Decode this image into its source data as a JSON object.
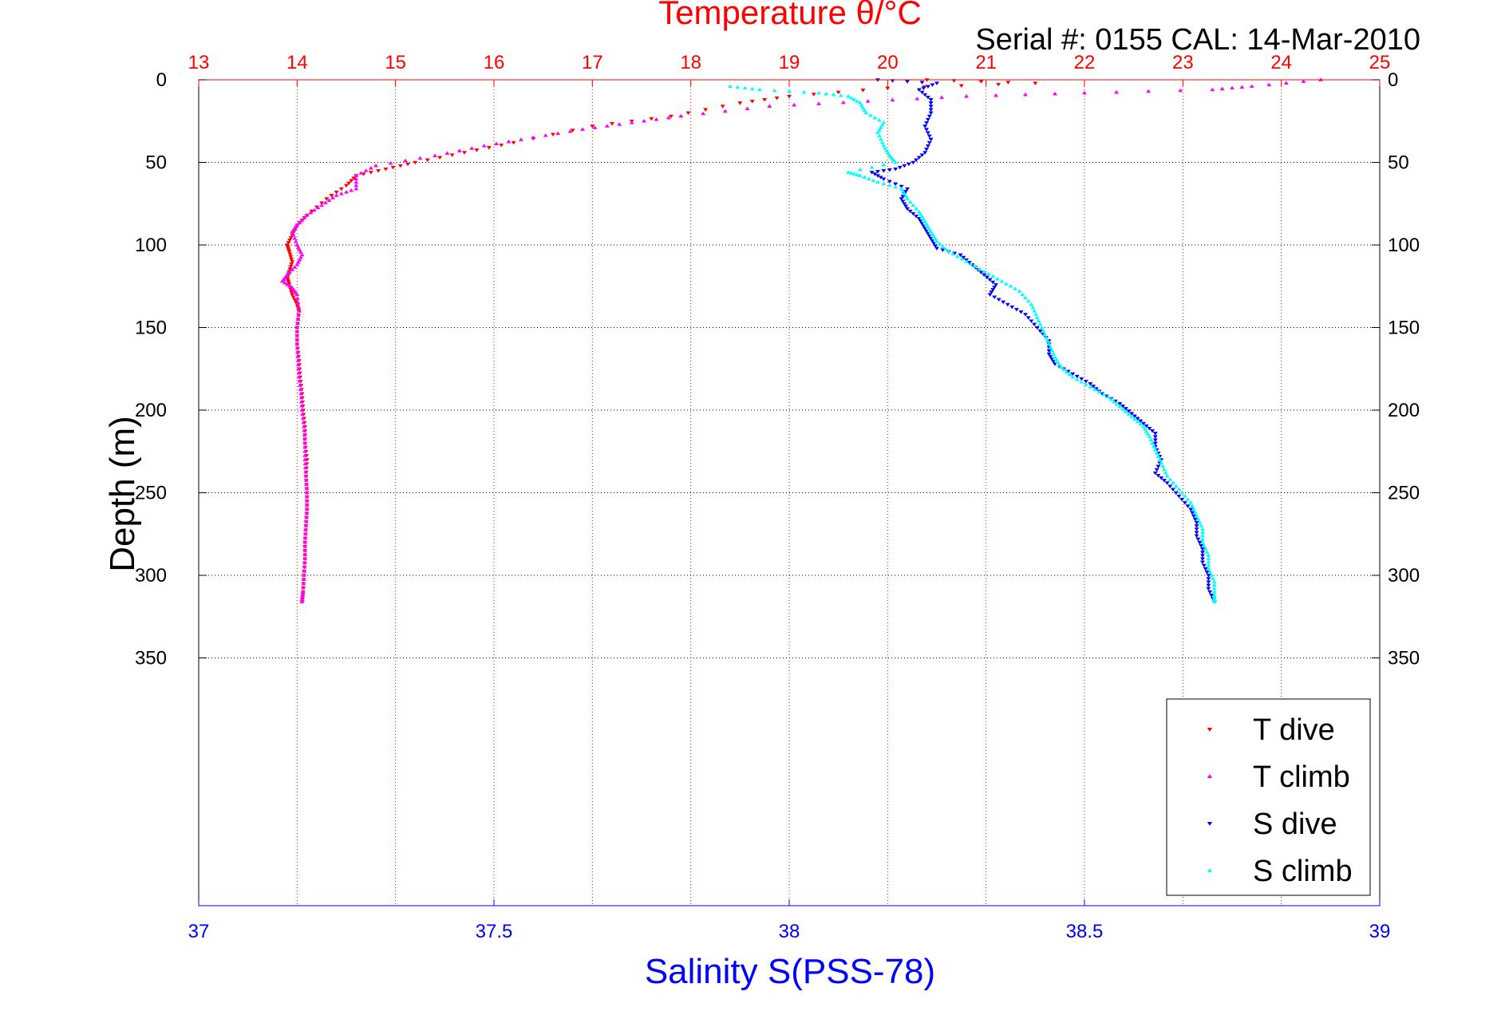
{
  "chart_data": {
    "type": "scatter",
    "title": "Temperature θ/°C",
    "annotation": "Serial #: 0155  CAL: 14-Mar-2010",
    "xlabel_bottom": "Salinity S(PSS-78)",
    "ylabel": "Depth (m)",
    "temperature_axis": {
      "position": "top",
      "range": [
        13,
        25
      ],
      "ticks": [
        "13",
        "14",
        "15",
        "16",
        "17",
        "18",
        "19",
        "20",
        "21",
        "22",
        "23",
        "24",
        "25"
      ],
      "color": "#ff0000",
      "grid": true
    },
    "salinity_axis": {
      "position": "bottom",
      "range": [
        37,
        39
      ],
      "ticks": [
        "37",
        "37.5",
        "38",
        "38.5",
        "39"
      ],
      "color": "#0000ff"
    },
    "depth_axis": {
      "range": [
        0,
        500
      ],
      "reversed": true,
      "ticks": [
        "0",
        "50",
        "100",
        "150",
        "200",
        "250",
        "300",
        "350"
      ],
      "grid": true
    },
    "legend": {
      "placement": "bottom-right",
      "entries": [
        {
          "label": "T dive",
          "color": "#ff0000",
          "marker": "triangle-down"
        },
        {
          "label": "T climb",
          "color": "#ff00ff",
          "marker": "triangle-up"
        },
        {
          "label": "S dive",
          "color": "#0000ff",
          "marker": "triangle-down"
        },
        {
          "label": "S climb",
          "color": "#00ffff",
          "marker": "triangle-up"
        }
      ]
    },
    "series": [
      {
        "name": "T dive",
        "axis": "temperature",
        "color": "#ff0000",
        "marker": "triangle-down",
        "points": [
          [
            20.4,
            0
          ],
          [
            21.5,
            2
          ],
          [
            20.0,
            5
          ],
          [
            19.0,
            10
          ],
          [
            18.5,
            14
          ],
          [
            17.8,
            22
          ],
          [
            17.0,
            28
          ],
          [
            16.2,
            38
          ],
          [
            15.7,
            44
          ],
          [
            15.2,
            50
          ],
          [
            14.9,
            54
          ],
          [
            14.6,
            58
          ],
          [
            14.5,
            64
          ],
          [
            14.3,
            72
          ],
          [
            14.1,
            82
          ],
          [
            14.0,
            88
          ],
          [
            13.95,
            94
          ],
          [
            13.9,
            100
          ],
          [
            13.92,
            104
          ],
          [
            13.95,
            110
          ],
          [
            13.92,
            116
          ],
          [
            13.9,
            120
          ],
          [
            13.92,
            124
          ],
          [
            13.95,
            130
          ],
          [
            14.0,
            136
          ],
          [
            14.02,
            140
          ],
          [
            14.0,
            150
          ],
          [
            14.0,
            160
          ],
          [
            14.02,
            170
          ],
          [
            14.03,
            180
          ],
          [
            14.05,
            190
          ],
          [
            14.06,
            200
          ],
          [
            14.08,
            210
          ],
          [
            14.08,
            220
          ],
          [
            14.1,
            230
          ],
          [
            14.09,
            240
          ],
          [
            14.1,
            250
          ],
          [
            14.1,
            260
          ],
          [
            14.09,
            270
          ],
          [
            14.08,
            280
          ],
          [
            14.08,
            290
          ],
          [
            14.07,
            300
          ],
          [
            14.06,
            310
          ],
          [
            14.05,
            316
          ]
        ]
      },
      {
        "name": "T climb",
        "axis": "temperature",
        "color": "#ff00ff",
        "marker": "triangle-up",
        "points": [
          [
            24.4,
            0
          ],
          [
            23.7,
            4
          ],
          [
            23.3,
            6
          ],
          [
            22.0,
            8
          ],
          [
            20.8,
            10
          ],
          [
            19.8,
            13
          ],
          [
            18.8,
            16
          ],
          [
            17.9,
            22
          ],
          [
            17.4,
            26
          ],
          [
            16.9,
            30
          ],
          [
            16.4,
            35
          ],
          [
            15.9,
            40
          ],
          [
            15.4,
            46
          ],
          [
            14.8,
            52
          ],
          [
            14.6,
            58
          ],
          [
            14.6,
            66
          ],
          [
            14.4,
            70
          ],
          [
            14.25,
            76
          ],
          [
            14.1,
            82
          ],
          [
            14.0,
            88
          ],
          [
            13.95,
            92
          ],
          [
            14.0,
            100
          ],
          [
            14.05,
            106
          ],
          [
            14.0,
            112
          ],
          [
            13.9,
            118
          ],
          [
            13.85,
            122
          ],
          [
            13.95,
            126
          ],
          [
            14.0,
            130
          ],
          [
            14.02,
            140
          ],
          [
            14.0,
            150
          ],
          [
            14.0,
            160
          ],
          [
            14.01,
            170
          ],
          [
            14.02,
            180
          ],
          [
            14.04,
            190
          ],
          [
            14.05,
            200
          ],
          [
            14.07,
            210
          ],
          [
            14.08,
            220
          ],
          [
            14.08,
            230
          ],
          [
            14.09,
            240
          ],
          [
            14.1,
            250
          ],
          [
            14.1,
            260
          ],
          [
            14.09,
            270
          ],
          [
            14.08,
            280
          ],
          [
            14.08,
            290
          ],
          [
            14.07,
            300
          ],
          [
            14.06,
            310
          ],
          [
            14.05,
            316
          ]
        ]
      },
      {
        "name": "S dive",
        "axis": "salinity",
        "color": "#0000ff",
        "marker": "triangle-down",
        "points": [
          [
            38.15,
            0
          ],
          [
            38.25,
            2
          ],
          [
            38.22,
            6
          ],
          [
            38.24,
            12
          ],
          [
            38.24,
            20
          ],
          [
            38.23,
            28
          ],
          [
            38.24,
            36
          ],
          [
            38.23,
            44
          ],
          [
            38.21,
            50
          ],
          [
            38.18,
            54
          ],
          [
            38.14,
            56
          ],
          [
            38.16,
            60
          ],
          [
            38.2,
            66
          ],
          [
            38.19,
            72
          ],
          [
            38.2,
            78
          ],
          [
            38.22,
            84
          ],
          [
            38.23,
            90
          ],
          [
            38.24,
            96
          ],
          [
            38.25,
            102
          ],
          [
            38.29,
            106
          ],
          [
            38.31,
            112
          ],
          [
            38.33,
            118
          ],
          [
            38.35,
            124
          ],
          [
            38.34,
            130
          ],
          [
            38.37,
            136
          ],
          [
            38.4,
            142
          ],
          [
            38.42,
            150
          ],
          [
            38.44,
            158
          ],
          [
            38.44,
            166
          ],
          [
            38.45,
            172
          ],
          [
            38.48,
            178
          ],
          [
            38.51,
            184
          ],
          [
            38.53,
            190
          ],
          [
            38.56,
            196
          ],
          [
            38.58,
            202
          ],
          [
            38.6,
            208
          ],
          [
            38.62,
            214
          ],
          [
            38.62,
            222
          ],
          [
            38.63,
            230
          ],
          [
            38.62,
            238
          ],
          [
            38.64,
            244
          ],
          [
            38.66,
            252
          ],
          [
            38.68,
            260
          ],
          [
            38.69,
            268
          ],
          [
            38.69,
            276
          ],
          [
            38.7,
            284
          ],
          [
            38.7,
            292
          ],
          [
            38.71,
            300
          ],
          [
            38.71,
            308
          ],
          [
            38.72,
            316
          ]
        ]
      },
      {
        "name": "S climb",
        "axis": "salinity",
        "color": "#00ffff",
        "marker": "triangle-up",
        "points": [
          [
            37.9,
            4
          ],
          [
            37.95,
            6
          ],
          [
            38.05,
            8
          ],
          [
            38.1,
            10
          ],
          [
            38.12,
            14
          ],
          [
            38.13,
            20
          ],
          [
            38.16,
            26
          ],
          [
            38.15,
            32
          ],
          [
            38.16,
            40
          ],
          [
            38.17,
            46
          ],
          [
            38.18,
            50
          ],
          [
            38.1,
            56
          ],
          [
            38.12,
            58
          ],
          [
            38.15,
            62
          ],
          [
            38.19,
            66
          ],
          [
            38.2,
            72
          ],
          [
            38.22,
            80
          ],
          [
            38.23,
            86
          ],
          [
            38.24,
            92
          ],
          [
            38.25,
            98
          ],
          [
            38.27,
            104
          ],
          [
            38.3,
            110
          ],
          [
            38.33,
            116
          ],
          [
            38.36,
            122
          ],
          [
            38.39,
            128
          ],
          [
            38.41,
            136
          ],
          [
            38.42,
            144
          ],
          [
            38.43,
            152
          ],
          [
            38.44,
            160
          ],
          [
            38.45,
            168
          ],
          [
            38.46,
            174
          ],
          [
            38.48,
            180
          ],
          [
            38.51,
            186
          ],
          [
            38.54,
            192
          ],
          [
            38.56,
            198
          ],
          [
            38.58,
            204
          ],
          [
            38.6,
            210
          ],
          [
            38.61,
            216
          ],
          [
            38.62,
            224
          ],
          [
            38.63,
            232
          ],
          [
            38.64,
            240
          ],
          [
            38.66,
            248
          ],
          [
            38.68,
            256
          ],
          [
            38.69,
            264
          ],
          [
            38.7,
            272
          ],
          [
            38.7,
            280
          ],
          [
            38.71,
            288
          ],
          [
            38.71,
            296
          ],
          [
            38.72,
            304
          ],
          [
            38.72,
            312
          ],
          [
            38.72,
            316
          ]
        ]
      }
    ]
  }
}
